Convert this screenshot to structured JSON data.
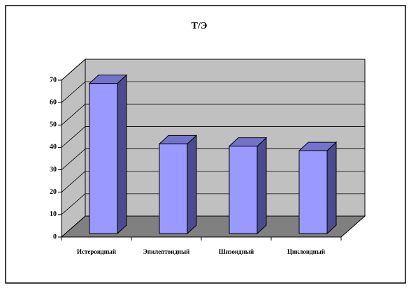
{
  "chart_data": {
    "type": "bar3d",
    "title": "Т/Э",
    "categories": [
      "Истероидный",
      "Эпилептоидный",
      "Шизоидный",
      "Циклоидный"
    ],
    "values": [
      67,
      40,
      39,
      37
    ],
    "color": "#9999ff",
    "ylim": [
      0,
      70
    ],
    "yticks": [
      0,
      10,
      20,
      30,
      40,
      50,
      60,
      70
    ],
    "grid": true
  }
}
